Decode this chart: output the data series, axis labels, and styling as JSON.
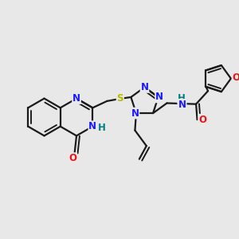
{
  "bg_color": "#e8e8e8",
  "bond_color": "#1a1a1a",
  "bond_width": 1.6,
  "colors": {
    "N": "#1a1aff",
    "O": "#ee1111",
    "S": "#b8b800",
    "H": "#008080"
  },
  "fs": 8.5
}
